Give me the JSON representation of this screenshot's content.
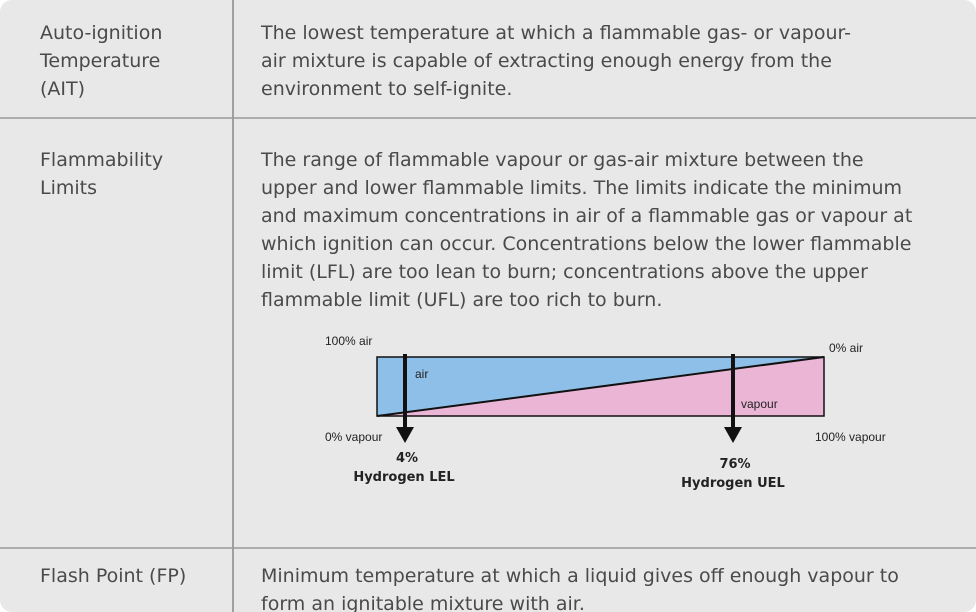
{
  "table": {
    "rows": [
      {
        "term": [
          "Auto-ignition",
          "Temperature",
          "(AIT)"
        ],
        "definition": [
          "The lowest temperature at which a flammable gas- or vapour-",
          "air mixture is capable of extracting enough energy from the",
          "environment to self-ignite."
        ]
      },
      {
        "term": [
          "Flammability",
          "Limits"
        ],
        "definition": [
          "The range of flammable vapour or gas-air mixture between the",
          "upper and lower flammable limits. The limits indicate the minimum",
          "and maximum concentrations in air of a flammable gas or vapour at",
          "which ignition can occur. Concentrations below the lower flammable",
          "limit (LFL) are too lean to burn; concentrations above the upper",
          "flammable limit (UFL) are too rich to burn."
        ],
        "diagram": {
          "top_left": "100% air",
          "top_right": "0% air",
          "bottom_left": "0% vapour",
          "bottom_right": "100% vapour",
          "air": "air",
          "vapour": "vapour",
          "lel_value": "4%",
          "lel_label": "Hydrogen LEL",
          "uel_value": "76%",
          "uel_label": "Hydrogen UEL"
        }
      },
      {
        "term": [
          "Flash Point (FP)"
        ],
        "definition": [
          "Minimum temperature at which a liquid gives off enough vapour to",
          "form an ignitable mixture with air."
        ]
      }
    ]
  }
}
